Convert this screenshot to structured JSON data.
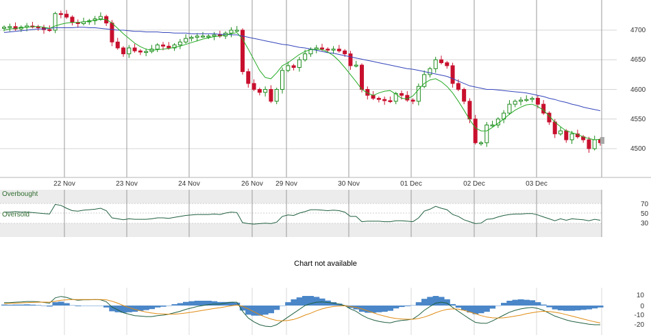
{
  "colors": {
    "up": "#1a8a1a",
    "down": "#c8102e",
    "ma_short": "#22aa22",
    "ma_long": "#3344bb",
    "rsi_line": "#1f5f3f",
    "macd_line": "#1f5f3f",
    "signal_line": "#e08a10",
    "histogram": "#4a86c8",
    "band_fill": "#ececec",
    "grid": "#d4d4d4",
    "vgrid": "#9a9a9a"
  },
  "main": {
    "y_ticks": [
      "4700",
      "4650",
      "4600",
      "4550",
      "4500"
    ],
    "x_labels": [
      "22 Nov",
      "23 Nov",
      "24 Nov",
      "26 Nov",
      "29 Nov",
      "30 Nov",
      "01 Dec",
      "02 Dec",
      "03 Dec"
    ]
  },
  "rsi": {
    "overbought_label": "Overbought",
    "oversold_label": "Oversold",
    "y_ticks": [
      "70",
      "50",
      "30"
    ]
  },
  "middle_message": "Chart not available",
  "macd": {
    "y_ticks": [
      "10",
      "0",
      "-10",
      "-20"
    ]
  },
  "chart_data": [
    {
      "type": "candlestick",
      "title": "",
      "x_categories": [
        "22 Nov",
        "23 Nov",
        "24 Nov",
        "26 Nov",
        "29 Nov",
        "30 Nov",
        "01 Dec",
        "02 Dec",
        "03 Dec"
      ],
      "ylim": [
        4460,
        4730
      ],
      "close_series": [
        4705,
        4706,
        4702,
        4705,
        4707,
        4706,
        4704,
        4701,
        4700,
        4728,
        4727,
        4722,
        4713,
        4711,
        4714,
        4716,
        4719,
        4723,
        4712,
        4680,
        4670,
        4660,
        4670,
        4665,
        4663,
        4664,
        4668,
        4675,
        4673,
        4670,
        4675,
        4680,
        4686,
        4688,
        4690,
        4690,
        4690,
        4692,
        4690,
        4695,
        4700,
        4700,
        4630,
        4610,
        4600,
        4595,
        4600,
        4580,
        4600,
        4632,
        4640,
        4637,
        4650,
        4660,
        4668,
        4670,
        4668,
        4667,
        4668,
        4665,
        4660,
        4640,
        4641,
        4600,
        4590,
        4585,
        4583,
        4581,
        4580,
        4593,
        4590,
        4582,
        4580,
        4605,
        4625,
        4635,
        4650,
        4645,
        4640,
        4610,
        4600,
        4580,
        4550,
        4510,
        4510,
        4540,
        4540,
        4550,
        4560,
        4575,
        4580,
        4582,
        4583,
        4585,
        4575,
        4560,
        4545,
        4525,
        4530,
        4515,
        4525,
        4520,
        4515,
        4500,
        4515,
        4510
      ],
      "ma_short_series": [
        4700,
        4702,
        4703,
        4704,
        4705,
        4706,
        4706,
        4705,
        4703,
        4707,
        4710,
        4712,
        4713,
        4713,
        4714,
        4715,
        4717,
        4718,
        4718,
        4712,
        4703,
        4694,
        4686,
        4678,
        4672,
        4668,
        4666,
        4667,
        4668,
        4669,
        4671,
        4673,
        4676,
        4679,
        4682,
        4685,
        4687,
        4689,
        4690,
        4692,
        4694,
        4696,
        4685,
        4668,
        4650,
        4632,
        4620,
        4618,
        4628,
        4640,
        4645,
        4652,
        4659,
        4664,
        4667,
        4668,
        4667,
        4663,
        4657,
        4648,
        4637,
        4625,
        4613,
        4600,
        4594,
        4590,
        4594,
        4597,
        4598,
        4592,
        4585,
        4584,
        4589,
        4600,
        4610,
        4616,
        4618,
        4613,
        4605,
        4594,
        4580,
        4565,
        4549,
        4535,
        4530,
        4530,
        4536,
        4543,
        4550,
        4558,
        4565,
        4570,
        4574,
        4575,
        4571,
        4565,
        4555,
        4545,
        4537,
        4530,
        4527,
        4524,
        4520,
        4517,
        4515,
        4516
      ],
      "ma_long_series": [
        4696,
        4697,
        4698,
        4699,
        4700,
        4701,
        4702,
        4702,
        4703,
        4704,
        4704,
        4704,
        4704,
        4705,
        4705,
        4704,
        4704,
        4703,
        4702,
        4701,
        4700,
        4700,
        4699,
        4698,
        4698,
        4697,
        4697,
        4697,
        4696,
        4696,
        4695,
        4695,
        4695,
        4694,
        4694,
        4694,
        4694,
        4694,
        4693,
        4693,
        4692,
        4692,
        4690,
        4688,
        4686,
        4684,
        4682,
        4680,
        4678,
        4676,
        4675,
        4673,
        4671,
        4670,
        4668,
        4666,
        4664,
        4662,
        4661,
        4659,
        4657,
        4655,
        4653,
        4651,
        4649,
        4647,
        4645,
        4643,
        4641,
        4639,
        4637,
        4635,
        4634,
        4632,
        4630,
        4628,
        4626,
        4624,
        4622,
        4618,
        4614,
        4610,
        4606,
        4604,
        4602,
        4600,
        4600,
        4599,
        4598,
        4597,
        4596,
        4595,
        4594,
        4592,
        4590,
        4588,
        4585,
        4583,
        4580,
        4578,
        4575,
        4573,
        4570,
        4568,
        4566,
        4564
      ]
    },
    {
      "type": "line",
      "title": "",
      "series": [
        {
          "values": [
            52,
            52,
            53,
            52,
            52,
            51,
            50,
            49,
            48,
            68,
            66,
            60,
            55,
            54,
            56,
            57,
            58,
            60,
            55,
            40,
            38,
            36,
            38,
            37,
            37,
            37,
            38,
            40,
            40,
            39,
            41,
            43,
            45,
            46,
            47,
            47,
            47,
            48,
            47,
            50,
            52,
            51,
            30,
            28,
            27,
            28,
            29,
            28,
            31,
            43,
            46,
            45,
            50,
            53,
            57,
            57,
            56,
            55,
            56,
            55,
            52,
            43,
            43,
            32,
            33,
            33,
            33,
            32,
            32,
            34,
            34,
            33,
            32,
            40,
            54,
            58,
            64,
            60,
            57,
            47,
            43,
            36,
            32,
            28,
            29,
            37,
            38,
            42,
            45,
            47,
            48,
            48,
            49,
            49,
            46,
            42,
            38,
            34,
            38,
            35,
            38,
            37,
            36,
            34,
            37,
            35
          ]
        }
      ],
      "ylim": [
        0,
        100
      ],
      "reference_levels": [
        70,
        50,
        30
      ]
    },
    {
      "type": "line",
      "title": "",
      "series": [
        {
          "values": [
            3,
            3,
            3.5,
            3.8,
            4.2,
            4.2,
            4,
            3.2,
            2.5,
            8,
            9.5,
            8.5,
            6.5,
            5.5,
            6,
            6,
            6.2,
            6,
            4,
            -1.5,
            -4.5,
            -7.5,
            -9,
            -10.5,
            -11,
            -11.5,
            -11.5,
            -10.5,
            -10,
            -9,
            -7.5,
            -6,
            -4,
            -2.5,
            -1,
            0,
            1,
            1.5,
            1.5,
            2.5,
            3.5,
            3.5,
            -6,
            -13,
            -17,
            -20,
            -21.5,
            -22,
            -20,
            -16,
            -12,
            -8,
            -4,
            0,
            2,
            3.5,
            3.8,
            3.2,
            2.5,
            1.5,
            0,
            -3.5,
            -6,
            -10,
            -13,
            -15,
            -16.5,
            -17.5,
            -18,
            -16.5,
            -15.5,
            -15,
            -14,
            -10,
            -5,
            -1,
            2.5,
            3.5,
            2.5,
            -2,
            -6,
            -10,
            -14,
            -17.5,
            -18.5,
            -18.5,
            -16,
            -13,
            -10,
            -7,
            -5,
            -3.5,
            -2.5,
            -2,
            -3,
            -5,
            -8,
            -11,
            -13,
            -15,
            -16.5,
            -17.5,
            -18.5,
            -19.5,
            -20,
            -20
          ]
        },
        {
          "values": [
            2,
            2.2,
            2.5,
            2.8,
            3,
            3.3,
            3.5,
            3.6,
            3.5,
            4.5,
            5.5,
            6,
            6.2,
            6.2,
            6.2,
            6.2,
            6.2,
            6.2,
            6,
            4.5,
            2.5,
            0,
            -2,
            -4,
            -5.5,
            -6.8,
            -7.8,
            -8.5,
            -8.8,
            -9,
            -8.9,
            -8.5,
            -7.8,
            -7,
            -6,
            -5,
            -4,
            -3,
            -2.2,
            -1.2,
            -0.3,
            0.5,
            -0.8,
            -3.5,
            -6.5,
            -9.5,
            -12,
            -14,
            -15.5,
            -16,
            -15.5,
            -14.5,
            -12.5,
            -10,
            -8,
            -5.5,
            -3.5,
            -2,
            -1,
            -0.5,
            -0.3,
            -1,
            -2,
            -3.5,
            -5.5,
            -7.5,
            -9.5,
            -11,
            -12.5,
            -13.5,
            -14,
            -14.3,
            -14.3,
            -13.5,
            -12,
            -10,
            -7.5,
            -5.5,
            -4,
            -3.5,
            -3.8,
            -5,
            -6.8,
            -8.5,
            -10.5,
            -12,
            -12.8,
            -13,
            -12.8,
            -12,
            -11,
            -10,
            -8.5,
            -7.5,
            -6.5,
            -6,
            -6.2,
            -7,
            -8,
            -9.5,
            -11,
            -12.5,
            -14,
            -15.5,
            -17,
            -18
          ]
        }
      ],
      "ylim": [
        -25,
        15
      ],
      "reference_levels": [
        10,
        0,
        -10,
        -20
      ]
    }
  ]
}
